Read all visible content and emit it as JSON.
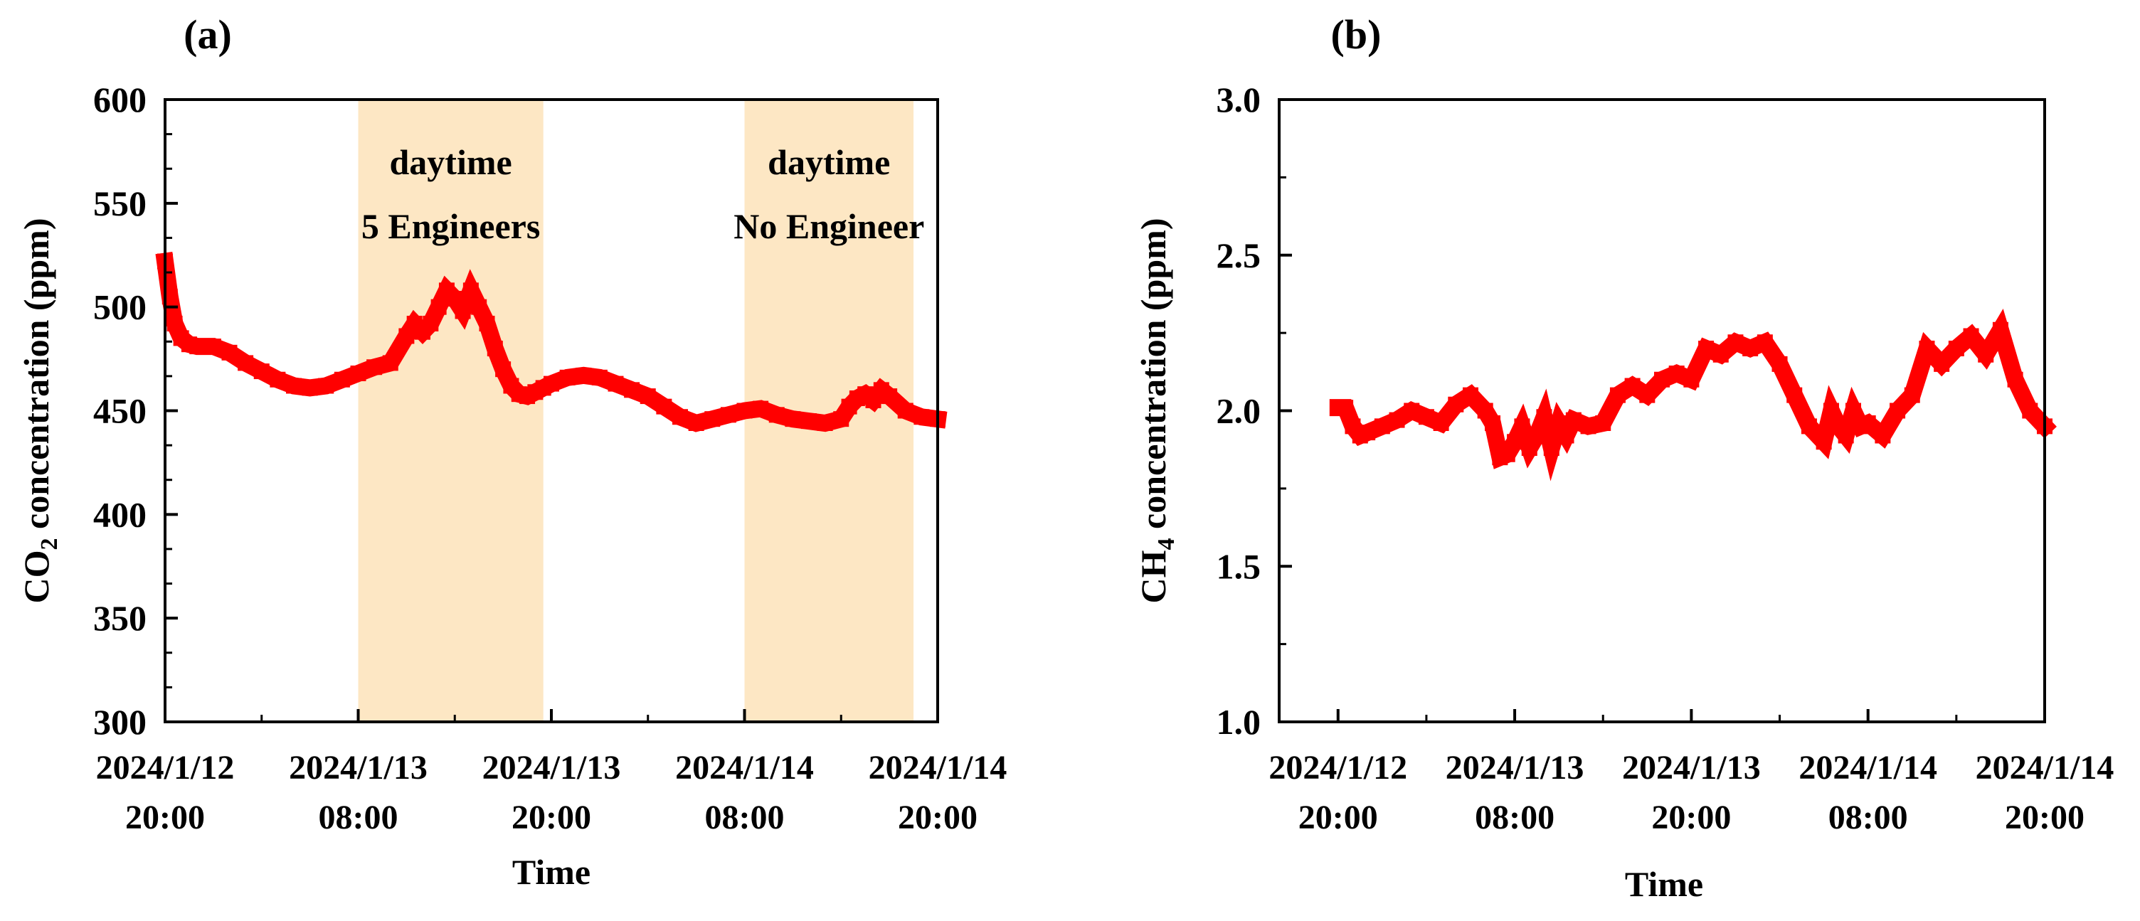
{
  "colors": {
    "series": "#ff0000",
    "band": "#fde7c4",
    "axis": "#000000"
  },
  "chart_data": [
    {
      "panel_label": "(a)",
      "type": "line",
      "xlabel": "Time",
      "ylabel_main": "CO",
      "ylabel_sub": "2",
      "ylabel_rest": " concentration (ppm)",
      "ylim": [
        300,
        600
      ],
      "yticks": [
        300,
        350,
        400,
        450,
        500,
        550,
        600
      ],
      "ytick_labels": [
        "300",
        "350",
        "400",
        "450",
        "500",
        "550",
        "600"
      ],
      "xlim_hours": [
        0,
        48
      ],
      "xticks_hours": [
        0,
        12,
        24,
        36,
        48
      ],
      "xtick_labels": [
        [
          "2024/1/12",
          "20:00"
        ],
        [
          "2024/1/13",
          "08:00"
        ],
        [
          "2024/1/13",
          "20:00"
        ],
        [
          "2024/1/14",
          "08:00"
        ],
        [
          "2024/1/14",
          "20:00"
        ]
      ],
      "bands": [
        {
          "start_hours": 12,
          "end_hours": 23.5,
          "label1": "daytime",
          "label2": "5 Engineers"
        },
        {
          "start_hours": 36,
          "end_hours": 46.5,
          "label1": "daytime",
          "label2": "No Engineer"
        }
      ],
      "series": [
        {
          "name": "CO2",
          "x": [
            0,
            0.3,
            0.6,
            1,
            1.5,
            2,
            3,
            4,
            5,
            6,
            7,
            8,
            9,
            10,
            11,
            12,
            13,
            14,
            15,
            15.5,
            16,
            16.5,
            17,
            17.5,
            18,
            18.5,
            19,
            19.5,
            20,
            20.5,
            21,
            21.5,
            22,
            22.5,
            23,
            23.5,
            24,
            25,
            26,
            27,
            28,
            29,
            30,
            31,
            32,
            33,
            34,
            35,
            36,
            37,
            38,
            39,
            40,
            41,
            42,
            42.5,
            43,
            43.5,
            44,
            44.5,
            45,
            46,
            47,
            48
          ],
          "values": [
            522,
            505,
            492,
            485,
            482,
            481,
            481,
            478,
            473,
            469,
            465,
            462,
            461,
            462,
            465,
            468,
            471,
            473,
            486,
            492,
            488,
            492,
            500,
            508,
            504,
            498,
            508,
            500,
            492,
            480,
            470,
            462,
            458,
            457,
            459,
            461,
            463,
            466,
            467,
            466,
            463,
            460,
            457,
            452,
            447,
            444,
            446,
            448,
            450,
            451,
            448,
            446,
            445,
            444,
            446,
            452,
            456,
            458,
            455,
            460,
            457,
            450,
            447,
            446
          ]
        }
      ]
    },
    {
      "panel_label": "(b)",
      "type": "line",
      "xlabel": "Time",
      "ylabel_main": "CH",
      "ylabel_sub": "4",
      "ylabel_rest": " concentration (ppm)",
      "ylim": [
        1.0,
        3.0
      ],
      "yticks": [
        1.0,
        1.5,
        2.0,
        2.5,
        3.0
      ],
      "ytick_labels": [
        "1.0",
        "1.5",
        "2.0",
        "2.5",
        "3.0"
      ],
      "xlim_hours": [
        -4,
        48
      ],
      "xticks_hours": [
        0,
        12,
        24,
        36,
        48
      ],
      "xtick_labels": [
        [
          "2024/1/12",
          "20:00"
        ],
        [
          "2024/1/13",
          "08:00"
        ],
        [
          "2024/1/13",
          "20:00"
        ],
        [
          "2024/1/14",
          "08:00"
        ],
        [
          "2024/1/14",
          "20:00"
        ]
      ],
      "bands": [],
      "series": [
        {
          "name": "CH4",
          "x": [
            0,
            0.5,
            1,
            1.5,
            2,
            3,
            4,
            5,
            6,
            7,
            8,
            9,
            10,
            10.5,
            11,
            11.5,
            12,
            12.5,
            13,
            13.5,
            14,
            14.5,
            15,
            15.5,
            16,
            17,
            18,
            19,
            20,
            21,
            22,
            23,
            24,
            25,
            26,
            27,
            28,
            29,
            30,
            31,
            32,
            33,
            33.5,
            34,
            34.5,
            35,
            35.5,
            36,
            37,
            38,
            39,
            40,
            41,
            42,
            43,
            44,
            45,
            46,
            47,
            48
          ],
          "values": [
            2.01,
            2.01,
            1.95,
            1.92,
            1.93,
            1.95,
            1.97,
            2.0,
            1.98,
            1.96,
            2.02,
            2.05,
            2.0,
            1.96,
            1.85,
            1.86,
            1.9,
            1.95,
            1.88,
            1.92,
            1.98,
            1.88,
            1.96,
            1.92,
            1.97,
            1.95,
            1.96,
            2.05,
            2.08,
            2.05,
            2.1,
            2.12,
            2.1,
            2.2,
            2.18,
            2.22,
            2.2,
            2.22,
            2.15,
            2.05,
            1.95,
            1.9,
            2.0,
            1.95,
            1.92,
            2.0,
            1.95,
            1.96,
            1.92,
            2.0,
            2.05,
            2.2,
            2.15,
            2.2,
            2.24,
            2.18,
            2.26,
            2.1,
            2.0,
            1.95
          ]
        }
      ]
    }
  ]
}
